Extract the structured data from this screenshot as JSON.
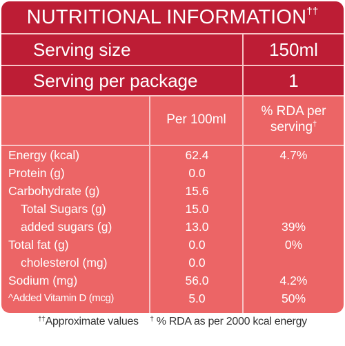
{
  "title": "NUTRITIONAL INFORMATION",
  "title_mark": "††",
  "serving": {
    "size_label": "Serving size",
    "size_value": "150ml",
    "per_package_label": "Serving per package",
    "per_package_value": "1"
  },
  "columns": {
    "per100": "Per 100ml",
    "rda_line1": "% RDA per",
    "rda_line2": "serving",
    "rda_mark": "†"
  },
  "rows": [
    {
      "label": "Energy (kcal)",
      "per100": "62.4",
      "rda": "4.7%"
    },
    {
      "label": "Protein (g)",
      "per100": "0.0",
      "rda": ""
    },
    {
      "label": "Carbohydrate (g)",
      "per100": "15.6",
      "rda": ""
    },
    {
      "label": "Total Sugars (g)",
      "per100": "15.0",
      "rda": ""
    },
    {
      "label": "added sugars (g)",
      "per100": "13.0",
      "rda": "39%"
    },
    {
      "label": "Total fat (g)",
      "per100": "0.0",
      "rda": "0%"
    },
    {
      "label": "cholesterol (mg)",
      "per100": "0.0",
      "rda": ""
    },
    {
      "label": "Sodium (mg)",
      "per100": "56.0",
      "rda": "4.2%"
    },
    {
      "label": "^Added Vitamin D (mcg)",
      "per100": "5.0",
      "rda": "50%"
    }
  ],
  "footer": {
    "mark1": "††",
    "note1": "Approximate values",
    "mark2": "†",
    "note2": "% RDA as per 2000 kcal energy"
  },
  "colors": {
    "panel": "#ec6566",
    "header_dark": "#bd1d35",
    "divider": "#f7c5c6"
  }
}
